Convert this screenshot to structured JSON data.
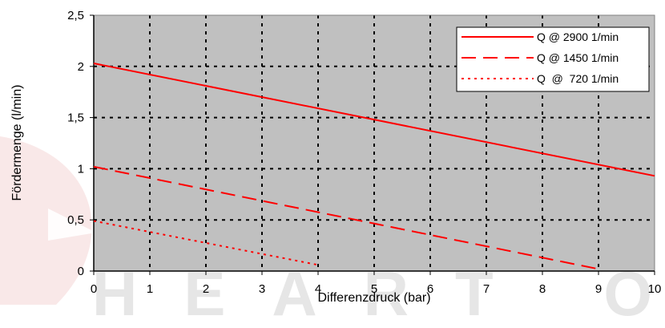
{
  "watermark": "HEART OF HIG",
  "chart_data": {
    "type": "line",
    "xlabel": "Differenzdruck (bar)",
    "ylabel": "Fördermenge (l/min)",
    "xlim": [
      0,
      10
    ],
    "ylim": [
      0,
      2.5
    ],
    "xticks": [
      "0",
      "1",
      "2",
      "3",
      "4",
      "5",
      "6",
      "7",
      "8",
      "9",
      "10"
    ],
    "yticks": [
      "0",
      "0,5",
      "1",
      "1,5",
      "2",
      "2,5"
    ],
    "grid": true,
    "legend_position": "top-right",
    "plot_background": "#c0c0c0",
    "series_color": "#ff0000",
    "series": [
      {
        "name": "Q @ 2900 1/min",
        "style": "solid",
        "x": [
          0,
          10
        ],
        "y": [
          2.03,
          0.93
        ]
      },
      {
        "name": "Q @ 1450 1/min",
        "style": "dashed",
        "x": [
          0,
          9
        ],
        "y": [
          1.02,
          0.02
        ]
      },
      {
        "name": "Q  @  720 1/min",
        "style": "dotted",
        "x": [
          0,
          4
        ],
        "y": [
          0.49,
          0.06
        ]
      }
    ]
  }
}
